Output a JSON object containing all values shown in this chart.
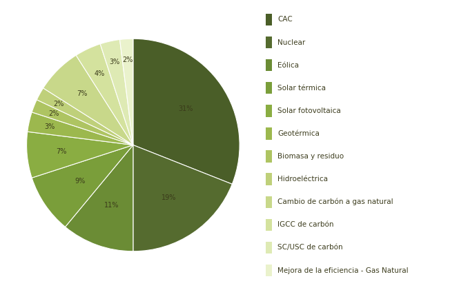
{
  "labels": [
    "CAC",
    "Nuclear",
    "Eólica",
    "Solar térmica",
    "Solar fotovoltaica",
    "Geotérmica",
    "Biomasa y residuo",
    "Hidroeléctrica",
    "Cambio de carbón a gas natural",
    "IGCC de carbón",
    "SC/USC de carbón",
    "Mejora de la eficiencia - Gas Natural"
  ],
  "values": [
    31,
    19,
    11,
    9,
    7,
    3,
    2,
    2,
    7,
    4,
    3,
    2
  ],
  "colors": [
    "#4a5e28",
    "#556b2f",
    "#6b8c35",
    "#7a9e3a",
    "#8aad42",
    "#9cb84e",
    "#aec462",
    "#bfd07a",
    "#c8d88a",
    "#d4e29e",
    "#deeab4",
    "#eaf2cc"
  ],
  "pct_labels": [
    "31%",
    "19%",
    "11%",
    "9%",
    "7%",
    "3%",
    "2%",
    "2%",
    "7%",
    "4%",
    "3%",
    "2%"
  ],
  "pct_show": [
    true,
    true,
    true,
    true,
    true,
    true,
    true,
    true,
    true,
    true,
    true,
    true
  ],
  "background_color": "#ffffff",
  "text_color": "#3d3d1e",
  "label_color": "#3a3a00"
}
